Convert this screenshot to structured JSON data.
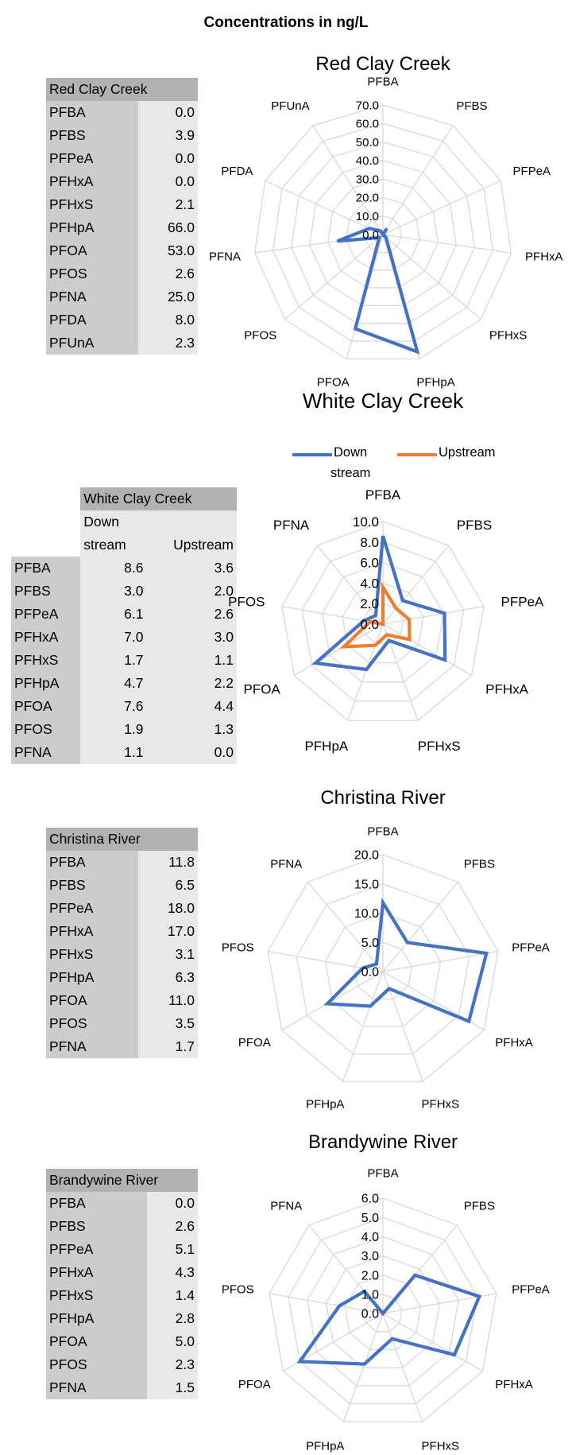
{
  "page_title": "Concentrations in ng/L",
  "colors": {
    "downstream": "#4472c4",
    "upstream": "#ed7d31",
    "grid": "#d9d9d9"
  },
  "chart_data": [
    {
      "type": "radar",
      "title": "Red Clay Creek",
      "table_header": "Red Clay Creek",
      "categories": [
        "PFBA",
        "PFBS",
        "PFPeA",
        "PFHxA",
        "PFHxS",
        "PFHpA",
        "PFOA",
        "PFOS",
        "PFNA",
        "PFDA",
        "PFUnA"
      ],
      "ticks": [
        "0.0",
        "10.0",
        "20.0",
        "30.0",
        "40.0",
        "50.0",
        "60.0",
        "70.0"
      ],
      "rmax": 70,
      "series": [
        {
          "values": [
            0.0,
            3.9,
            0.0,
            0.0,
            2.1,
            66.0,
            53.0,
            2.6,
            25.0,
            8.0,
            2.3
          ],
          "labels": [
            "0.0",
            "3.9",
            "0.0",
            "0.0",
            "2.1",
            "66.0",
            "53.0",
            "2.6",
            "25.0",
            "8.0",
            "2.3"
          ]
        }
      ]
    },
    {
      "type": "radar",
      "title": "White Clay Creek",
      "table_header": "White Clay Creek",
      "col_down": "Down stream",
      "col_down_line1": "Down",
      "col_down_line2": "stream",
      "col_up": "Upstream",
      "categories": [
        "PFBA",
        "PFBS",
        "PFPeA",
        "PFHxA",
        "PFHxS",
        "PFHpA",
        "PFOA",
        "PFOS",
        "PFNA"
      ],
      "ticks": [
        "0.0",
        "2.0",
        "4.0",
        "6.0",
        "8.0",
        "10.0"
      ],
      "rmax": 10,
      "legend": {
        "down_line1": "Down",
        "down_line2": "stream",
        "up": "Upstream"
      },
      "series": [
        {
          "name": "Down stream",
          "values": [
            8.6,
            3.0,
            6.1,
            7.0,
            1.7,
            4.7,
            7.6,
            1.9,
            1.1
          ],
          "labels": [
            "8.6",
            "3.0",
            "6.1",
            "7.0",
            "1.7",
            "4.7",
            "7.6",
            "1.9",
            "1.1"
          ]
        },
        {
          "name": "Upstream",
          "values": [
            3.6,
            2.0,
            2.6,
            3.0,
            1.1,
            2.2,
            4.4,
            1.3,
            0.0
          ],
          "labels": [
            "3.6",
            "2.0",
            "2.6",
            "3.0",
            "1.1",
            "2.2",
            "4.4",
            "1.3",
            "0.0"
          ]
        }
      ]
    },
    {
      "type": "radar",
      "title": "Christina River",
      "table_header": "Christina River",
      "categories": [
        "PFBA",
        "PFBS",
        "PFPeA",
        "PFHxA",
        "PFHxS",
        "PFHpA",
        "PFOA",
        "PFOS",
        "PFNA"
      ],
      "ticks": [
        "0.0",
        "5.0",
        "10.0",
        "15.0",
        "20.0"
      ],
      "rmax": 20,
      "series": [
        {
          "values": [
            11.8,
            6.5,
            18.0,
            17.0,
            3.1,
            6.3,
            11.0,
            3.5,
            1.7
          ],
          "labels": [
            "11.8",
            "6.5",
            "18.0",
            "17.0",
            "3.1",
            "6.3",
            "11.0",
            "3.5",
            "1.7"
          ]
        }
      ]
    },
    {
      "type": "radar",
      "title": "Brandywine River",
      "table_header": "Brandywine River",
      "categories": [
        "PFBA",
        "PFBS",
        "PFPeA",
        "PFHxA",
        "PFHxS",
        "PFHpA",
        "PFOA",
        "PFOS",
        "PFNA"
      ],
      "ticks": [
        "0.0",
        "1.0",
        "2.0",
        "3.0",
        "4.0",
        "5.0",
        "6.0"
      ],
      "rmax": 6,
      "series": [
        {
          "values": [
            0.0,
            2.6,
            5.1,
            4.3,
            1.4,
            2.8,
            5.0,
            2.3,
            1.5
          ],
          "labels": [
            "0.0",
            "2.6",
            "5.1",
            "4.3",
            "1.4",
            "2.8",
            "5.0",
            "2.3",
            "1.5"
          ]
        }
      ]
    }
  ]
}
